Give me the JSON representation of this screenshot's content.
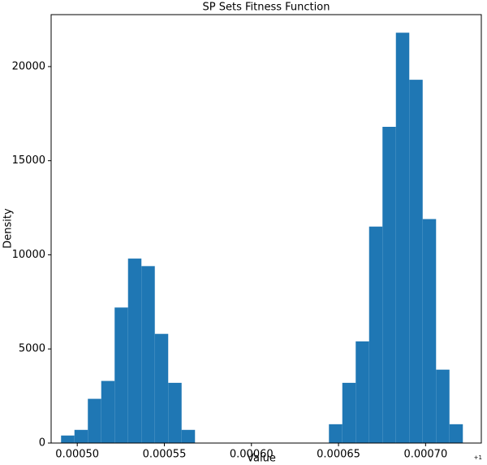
{
  "chart_data": {
    "type": "histogram",
    "title": "SP Sets Fitness Function",
    "x_label": "Value",
    "y_label": "Density",
    "x_offset_label": "+1",
    "bins": [
      0.0004907,
      0.00049839,
      0.00050608,
      0.00051377,
      0.00052146,
      0.00052915,
      0.00053684,
      0.00054453,
      0.00055222,
      0.00055991,
      0.0005676,
      0.00057529,
      0.00058298,
      0.00059067,
      0.00059836,
      0.00060605,
      0.00061374,
      0.00062143,
      0.00062912,
      0.00063681,
      0.0006445,
      0.00065219,
      0.00065988,
      0.00066757,
      0.00067526,
      0.00068295,
      0.00069064,
      0.00069833,
      0.00070602,
      0.00071371,
      0.0007214
    ],
    "values": [
      400,
      700,
      2350,
      3300,
      7200,
      9800,
      9400,
      5800,
      3200,
      700,
      0,
      0,
      0,
      0,
      0,
      0,
      0,
      0,
      0,
      0,
      1000,
      3200,
      5400,
      11500,
      16800,
      21800,
      19300,
      11900,
      3900,
      1000
    ],
    "color": "#1f77b4",
    "xlim": [
      0.000485,
      0.000732
    ],
    "xticks": [
      {
        "value": 0.0005,
        "label": "0.00050"
      },
      {
        "value": 0.00055,
        "label": "0.00055"
      },
      {
        "value": 0.0006,
        "label": "0.00060"
      },
      {
        "value": 0.00065,
        "label": "0.00065"
      },
      {
        "value": 0.0007,
        "label": "0.00070"
      }
    ],
    "ylim": [
      0,
      22760
    ],
    "yticks": [
      0,
      5000,
      10000,
      15000,
      20000
    ]
  }
}
